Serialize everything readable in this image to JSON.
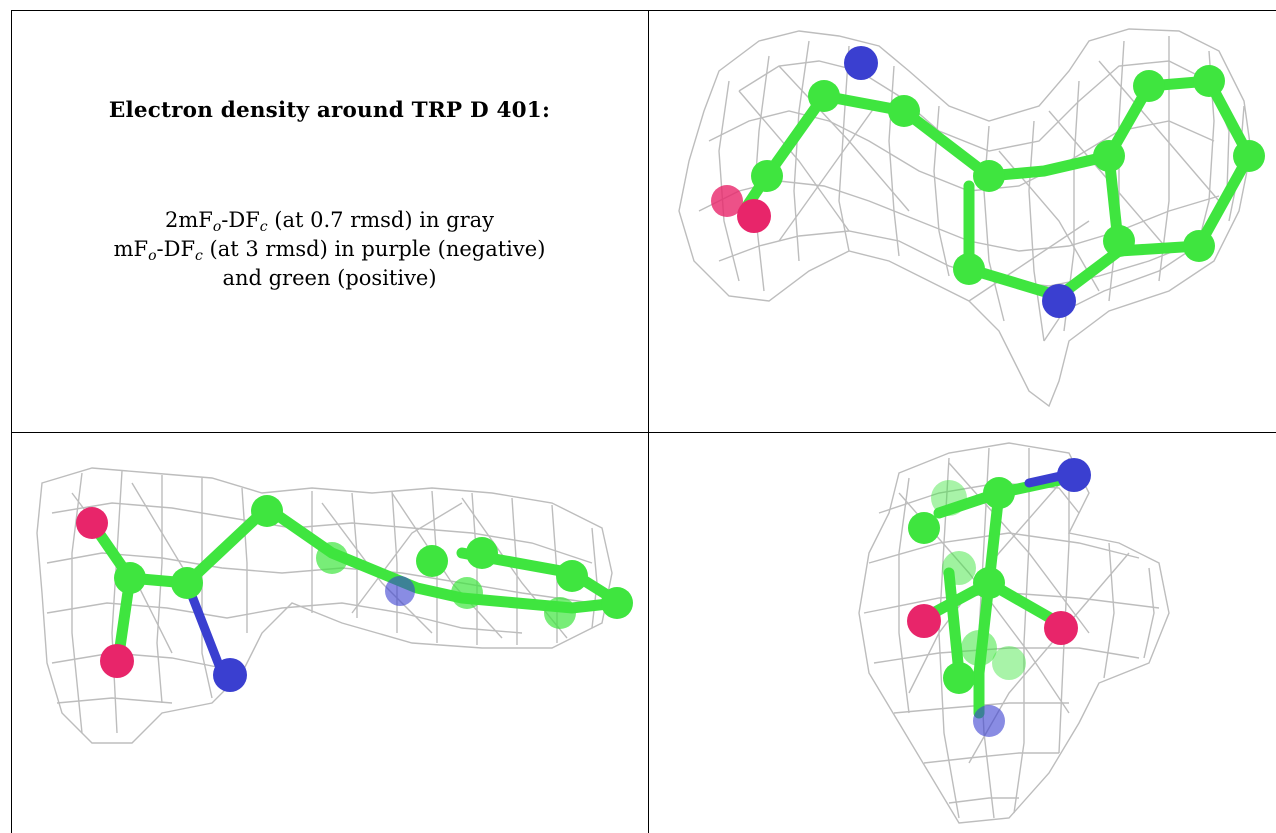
{
  "figure": {
    "title": "Electron density around TRP D 401:",
    "legend_lines": [
      {
        "parts": [
          "2mF",
          "o",
          "-DF",
          "c",
          " (at 0.7 rmsd) in gray"
        ]
      },
      {
        "parts": [
          "mF",
          "o",
          "-DF",
          "c",
          " (at 3 rmsd) in purple (negative)"
        ]
      },
      {
        "parts": [
          "and green (positive)"
        ]
      }
    ]
  },
  "colors": {
    "mesh": "#bdbdbd",
    "carbon": "#3fe53f",
    "nitrogen": "#3a3fd0",
    "oxygen": "#e8256a",
    "border": "#000000"
  },
  "panels": [
    {
      "name": "top-right-view",
      "view": "side view of tryptophan residue with indole ring"
    },
    {
      "name": "bottom-left-view",
      "view": "edge-on view of tryptophan residue"
    },
    {
      "name": "bottom-right-view",
      "view": "end-on view of tryptophan residue"
    }
  ]
}
